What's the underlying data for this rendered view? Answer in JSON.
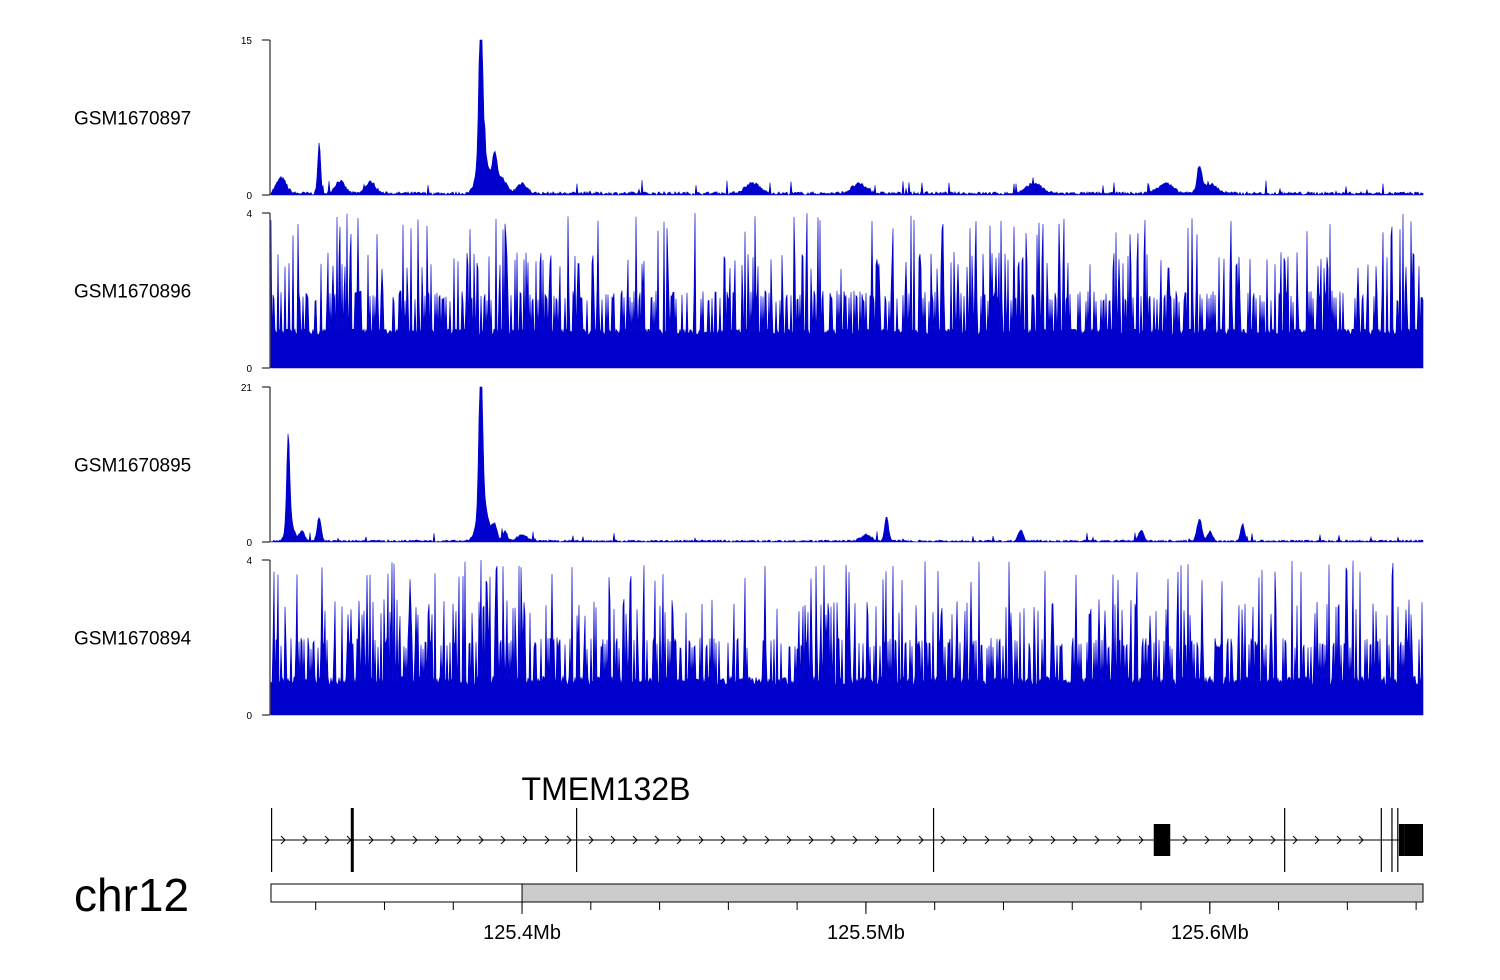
{
  "chart_data": {
    "type": "area",
    "title": "",
    "chromosome": "chr12",
    "x_unit": "Mb",
    "xlim": [
      125.327,
      125.662
    ],
    "colors": {
      "signal": "#0000cc",
      "axis": "#000000",
      "ideogram_fill": "#cccccc",
      "gene": "#000000"
    },
    "tracks": [
      {
        "name": "GSM1670897",
        "ylim": [
          0,
          15
        ],
        "y_ticks": [
          "0",
          "15"
        ],
        "baseline": 0.45,
        "noise": 0.7,
        "peaks": [
          {
            "x": 125.33,
            "y": 1.5,
            "w": 0.002
          },
          {
            "x": 125.341,
            "y": 4.8,
            "w": 0.0006
          },
          {
            "x": 125.347,
            "y": 1.2,
            "w": 0.002
          },
          {
            "x": 125.356,
            "y": 1.1,
            "w": 0.002
          },
          {
            "x": 125.388,
            "y": 15,
            "w": 0.0007
          },
          {
            "x": 125.3885,
            "y": 5,
            "w": 0.002
          },
          {
            "x": 125.392,
            "y": 3.2,
            "w": 0.001
          },
          {
            "x": 125.394,
            "y": 1.5,
            "w": 0.002
          },
          {
            "x": 125.4,
            "y": 1.0,
            "w": 0.002
          },
          {
            "x": 125.467,
            "y": 1.0,
            "w": 0.003
          },
          {
            "x": 125.498,
            "y": 0.9,
            "w": 0.003
          },
          {
            "x": 125.549,
            "y": 1.0,
            "w": 0.003
          },
          {
            "x": 125.587,
            "y": 1.0,
            "w": 0.003
          },
          {
            "x": 125.597,
            "y": 2.2,
            "w": 0.001
          },
          {
            "x": 125.6,
            "y": 0.9,
            "w": 0.003
          }
        ]
      },
      {
        "name": "GSM1670896",
        "ylim": [
          0,
          4
        ],
        "y_ticks": [
          "0",
          "4"
        ],
        "baseline": 1.0,
        "noise": 3.0,
        "peaks": []
      },
      {
        "name": "GSM1670895",
        "ylim": [
          0,
          21
        ],
        "y_ticks": [
          "0",
          "21"
        ],
        "baseline": 0.35,
        "noise": 0.8,
        "peaks": [
          {
            "x": 125.332,
            "y": 12,
            "w": 0.0006
          },
          {
            "x": 125.3325,
            "y": 3,
            "w": 0.0015
          },
          {
            "x": 125.336,
            "y": 1.5,
            "w": 0.001
          },
          {
            "x": 125.341,
            "y": 3.3,
            "w": 0.0008
          },
          {
            "x": 125.388,
            "y": 21,
            "w": 0.0007
          },
          {
            "x": 125.3885,
            "y": 6,
            "w": 0.002
          },
          {
            "x": 125.392,
            "y": 2.2,
            "w": 0.001
          },
          {
            "x": 125.395,
            "y": 1.3,
            "w": 0.001
          },
          {
            "x": 125.4,
            "y": 0.8,
            "w": 0.002
          },
          {
            "x": 125.5,
            "y": 0.9,
            "w": 0.002
          },
          {
            "x": 125.506,
            "y": 3.3,
            "w": 0.0008
          },
          {
            "x": 125.545,
            "y": 1.5,
            "w": 0.001
          },
          {
            "x": 125.58,
            "y": 1.5,
            "w": 0.001
          },
          {
            "x": 125.597,
            "y": 3.0,
            "w": 0.001
          },
          {
            "x": 125.6,
            "y": 1.3,
            "w": 0.001
          },
          {
            "x": 125.6095,
            "y": 2.3,
            "w": 0.0008
          }
        ]
      },
      {
        "name": "GSM1670894",
        "ylim": [
          0,
          4
        ],
        "y_ticks": [
          "0",
          "4"
        ],
        "baseline": 0.8,
        "noise": 3.0,
        "peaks": [
          {
            "x": 125.388,
            "y": 4,
            "w": 0.0002
          }
        ]
      }
    ],
    "gene": {
      "name": "TMEM132B",
      "strand": "+",
      "start": 125.327,
      "end": 125.662,
      "exons": [
        {
          "start": 125.327,
          "end": 125.3273,
          "tall": false
        },
        {
          "start": 125.3502,
          "end": 125.3507,
          "tall": true
        },
        {
          "start": 125.4157,
          "end": 125.416,
          "tall": false
        },
        {
          "start": 125.5195,
          "end": 125.5198,
          "tall": false
        },
        {
          "start": 125.5837,
          "end": 125.5885,
          "tall": true
        },
        {
          "start": 125.6216,
          "end": 125.6219,
          "tall": false
        },
        {
          "start": 125.6497,
          "end": 125.65,
          "tall": false
        },
        {
          "start": 125.6528,
          "end": 125.6531,
          "tall": false
        },
        {
          "start": 125.6545,
          "end": 125.6548,
          "tall": false
        },
        {
          "start": 125.655,
          "end": 125.6565,
          "tall": true
        },
        {
          "start": 125.6565,
          "end": 125.662,
          "tall": true
        }
      ]
    },
    "ideogram": {
      "highlight_start": 125.327,
      "highlight_end": 125.4
    },
    "x_ticks": [
      {
        "value": 125.4,
        "label": "125.4Mb"
      },
      {
        "value": 125.5,
        "label": "125.5Mb"
      },
      {
        "value": 125.6,
        "label": "125.6Mb"
      }
    ],
    "minor_tick_step": 0.02
  }
}
